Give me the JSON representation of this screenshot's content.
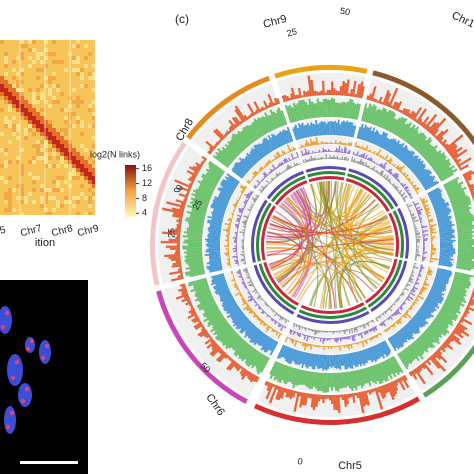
{
  "panel_label": "(c)",
  "heatmap": {
    "x_labels": [
      "r5",
      "Chr7",
      "Chr8",
      "Chr9"
    ],
    "x_title": "ition",
    "colorbar": {
      "title": "log2(N links)",
      "lim": [
        3,
        17
      ],
      "ticks": [
        4,
        8,
        12,
        16
      ]
    }
  },
  "circos": {
    "chromosomes": [
      {
        "label": "Chr1",
        "color": "#8b5a2b"
      },
      {
        "label": "Chr9",
        "color": "#e8a317"
      },
      {
        "label": "Chr8",
        "color": "#e58a1f"
      },
      {
        "label": "Chr7",
        "color": "#f2c6c6"
      },
      {
        "label": "Chr6",
        "color": "#c946b8"
      },
      {
        "label": "Chr5",
        "color": "#d92e2e"
      }
    ],
    "scale_labels": [
      "50",
      "25",
      "25",
      "0",
      "0",
      "25",
      "50",
      "0"
    ]
  }
}
